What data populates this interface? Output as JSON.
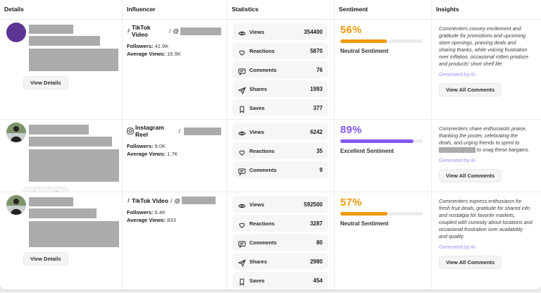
{
  "columns": [
    "Details",
    "Influencer",
    "Statistics",
    "Sentiment",
    "Insights"
  ],
  "ui": {
    "view_details": "View Details",
    "view_all_comments": "View All Comments",
    "generated_by_ai": "Generated by AI",
    "followers_label": "Followers:",
    "avg_views_label": "Average Views:"
  },
  "colors": {
    "neutral_orange": "#F0990D",
    "excellent_purple": "#8456F2",
    "ai_purple": "#A78BFA",
    "avatar_purple": "#5C3494",
    "redaction_gray": "#A9ABAD"
  },
  "rows": [
    {
      "influencer": {
        "platform": "TikTok Video",
        "separator": "/",
        "handle_prefix": "@",
        "followers": "41.9K",
        "average_views": "16.9K"
      },
      "stats": [
        {
          "icon": "views-icon",
          "label": "Views",
          "value": "354400"
        },
        {
          "icon": "reactions-icon",
          "label": "Reactions",
          "value": "5870"
        },
        {
          "icon": "comments-icon",
          "label": "Comments",
          "value": "76"
        },
        {
          "icon": "shares-icon",
          "label": "Shares",
          "value": "1993"
        },
        {
          "icon": "saves-icon",
          "label": "Saves",
          "value": "377"
        }
      ],
      "sentiment": {
        "percent": "56%",
        "value": 56,
        "label": "Neutral Sentiment",
        "color": "#F0990D"
      },
      "insights": {
        "text": "Commenters convey excitement and gratitude for promotions and upcoming store openings, praising deals and sharing thanks, while voicing frustration over inflation, occasional rotten produce and products' short shelf life."
      }
    },
    {
      "influencer": {
        "platform": "Instagram Reel",
        "separator": "/",
        "handle_prefix": "",
        "followers": "9.0K",
        "average_views": "1.7K"
      },
      "stats": [
        {
          "icon": "views-icon",
          "label": "Views",
          "value": "6242"
        },
        {
          "icon": "reactions-icon",
          "label": "Reactions",
          "value": "35"
        },
        {
          "icon": "comments-icon",
          "label": "Comments",
          "value": "9"
        }
      ],
      "sentiment": {
        "percent": "89%",
        "value": 89,
        "label": "Excellent Sentiment",
        "color": "#8456F2"
      },
      "insights": {
        "text_pre": "Commenters share enthusiastic praise, thanking the poster, celebrating the deals, and urging friends to sprint to",
        "text_post": "to snag these bargains."
      }
    },
    {
      "influencer": {
        "platform": "TikTok Video",
        "separator": "/",
        "handle_prefix": "@",
        "followers": "6.4K",
        "average_views": "833"
      },
      "stats": [
        {
          "icon": "views-icon",
          "label": "Views",
          "value": "592500"
        },
        {
          "icon": "reactions-icon",
          "label": "Reactions",
          "value": "3287"
        },
        {
          "icon": "comments-icon",
          "label": "Comments",
          "value": "80"
        },
        {
          "icon": "shares-icon",
          "label": "Shares",
          "value": "2980"
        },
        {
          "icon": "saves-icon",
          "label": "Saves",
          "value": "454"
        }
      ],
      "sentiment": {
        "percent": "57%",
        "value": 57,
        "label": "Neutral Sentiment",
        "color": "#F0990D"
      },
      "insights": {
        "text": "Commenters express enthusiasm for fresh fruit deals, gratitude for shared info and nostalgia for favorite markets, coupled with curiosity about locations and occasional frustration over availability and quality."
      }
    }
  ]
}
